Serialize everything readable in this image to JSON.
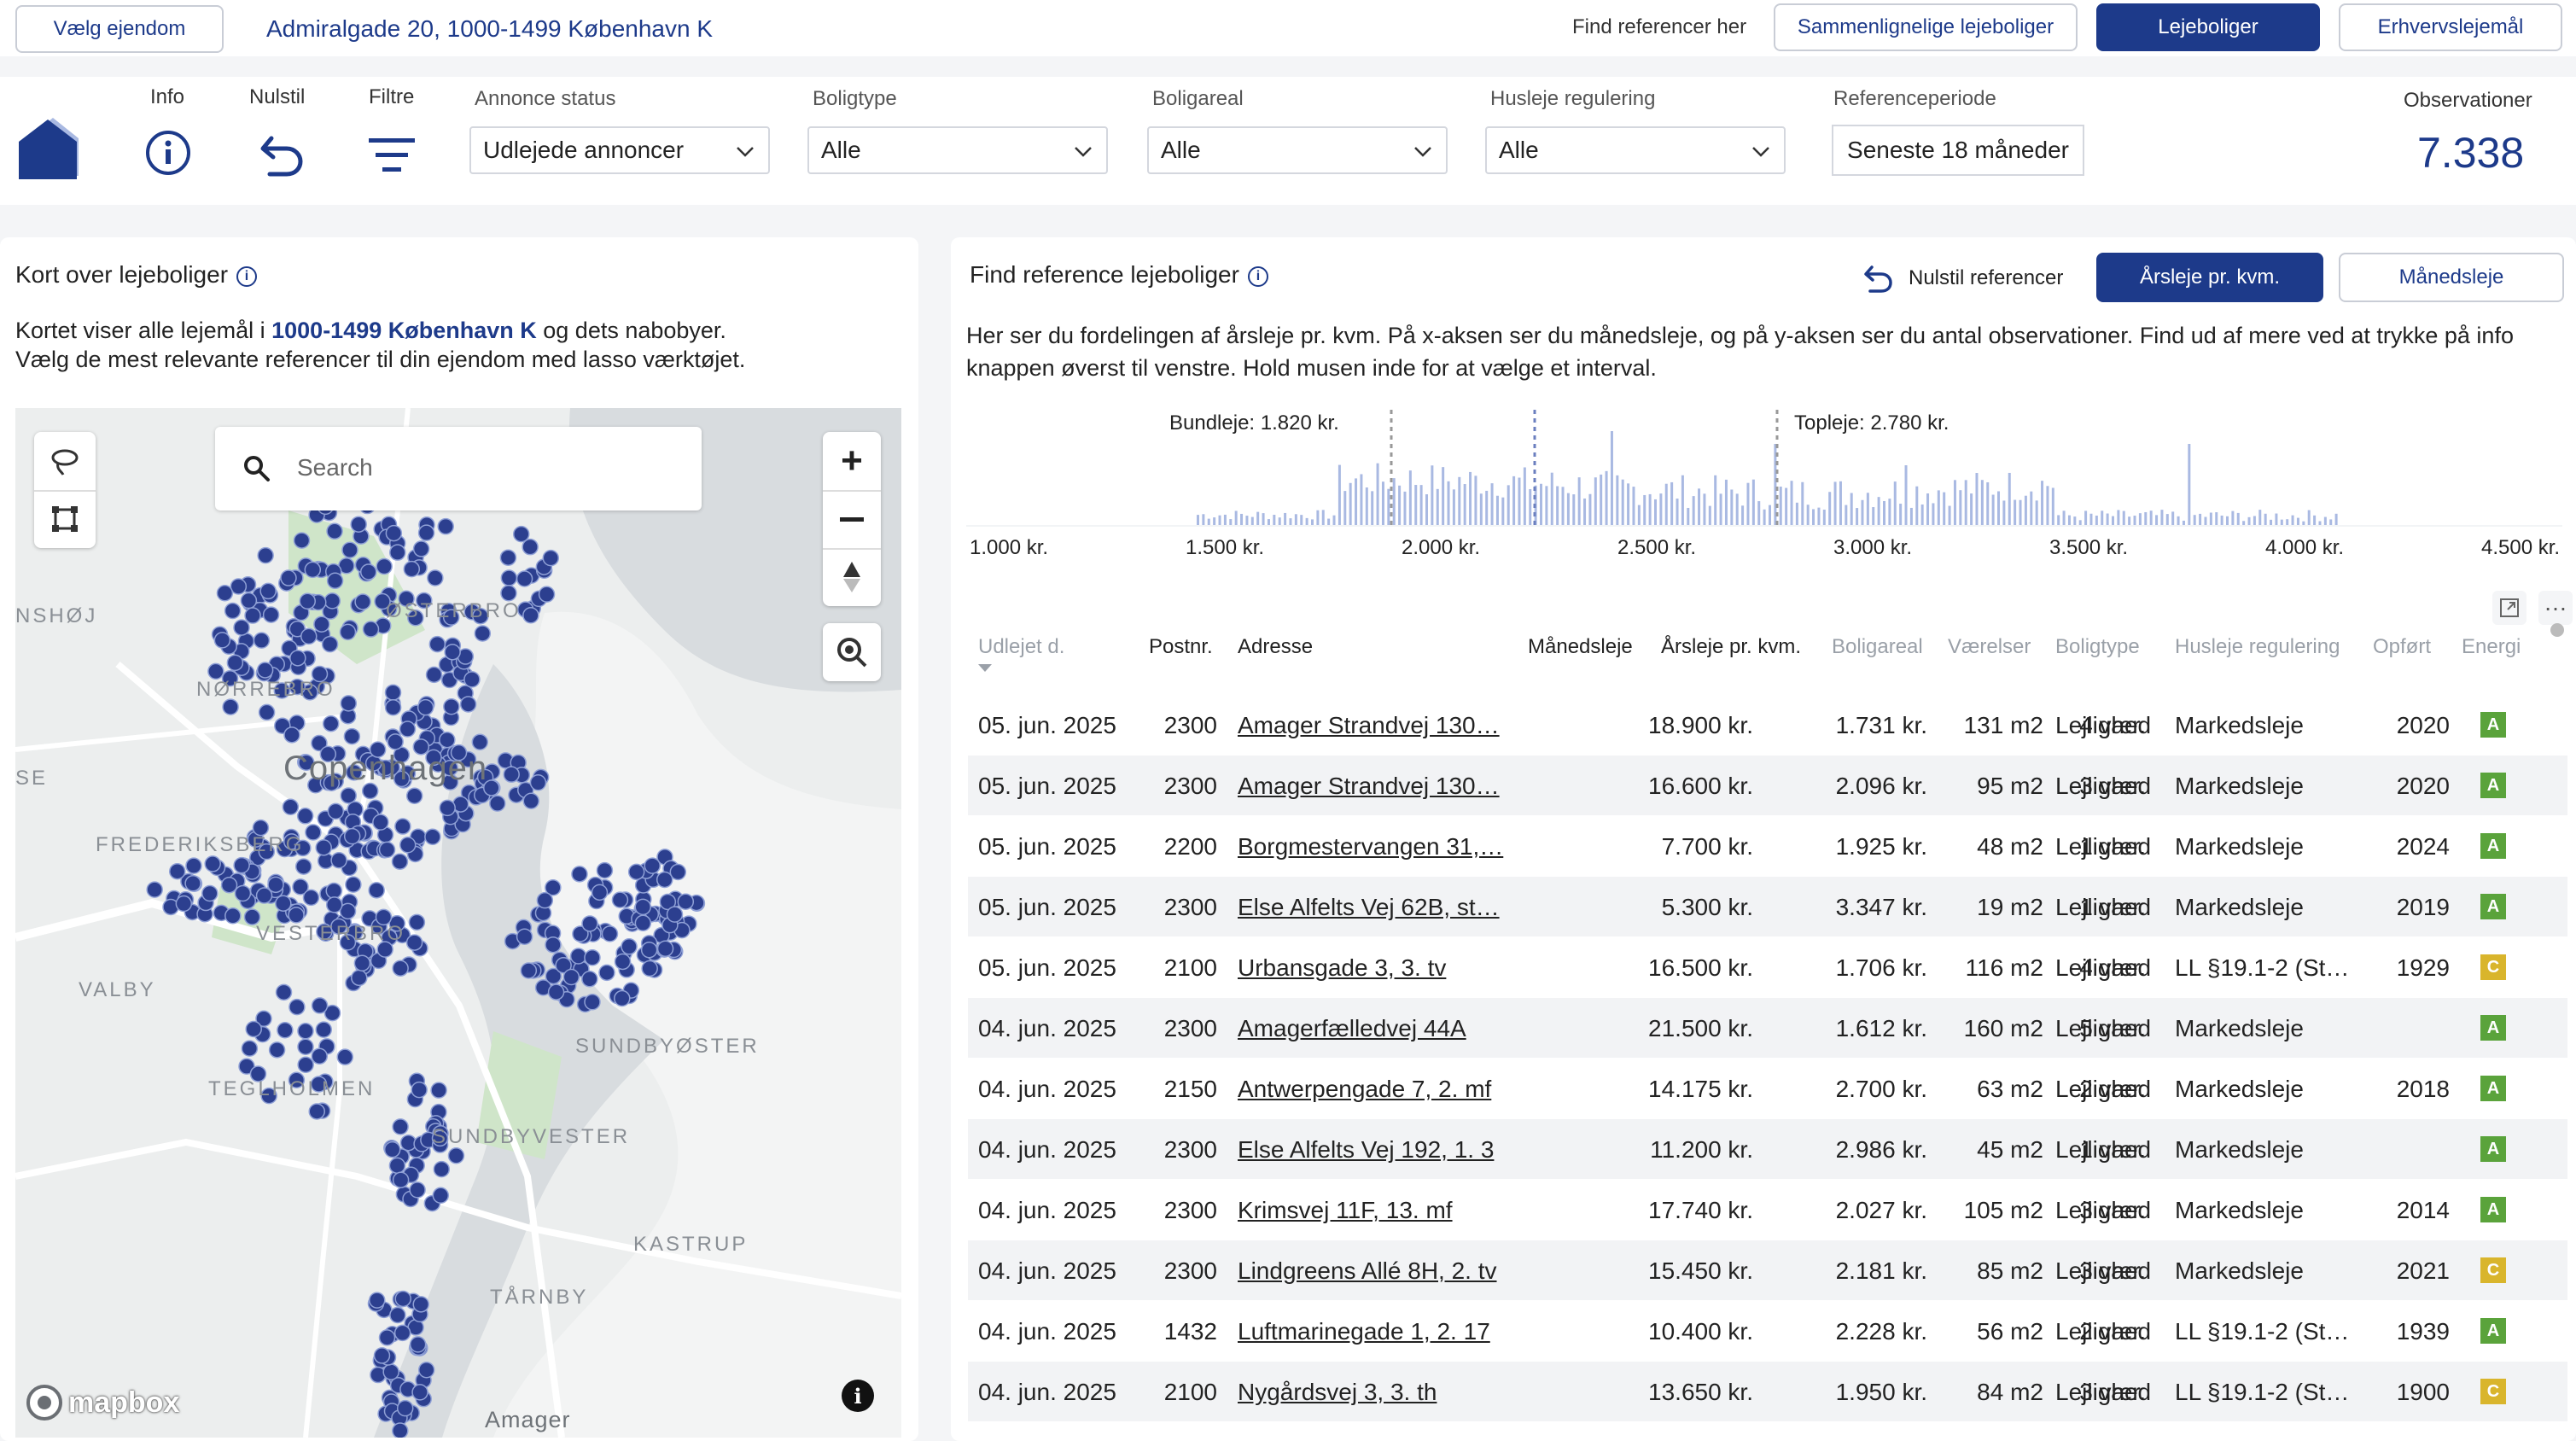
{
  "topbar": {
    "select_property": "Vælg ejendom",
    "address": "Admiralgade 20, 1000-1499 København K",
    "find_references_label": "Find referencer her",
    "btn_comparable": "Sammenlignelige lejeboliger",
    "btn_rental": "Lejeboliger",
    "btn_commercial": "Erhvervslejemål"
  },
  "tools": {
    "info": "Info",
    "reset": "Nulstil",
    "filters": "Filtre"
  },
  "filters": {
    "listing_status": {
      "label": "Annonce status",
      "value": "Udlejede annoncer"
    },
    "housing_type": {
      "label": "Boligtype",
      "value": "Alle"
    },
    "area": {
      "label": "Boligareal",
      "value": "Alle"
    },
    "rent_regulation": {
      "label": "Husleje regulering",
      "value": "Alle"
    },
    "reference_period": {
      "label": "Referenceperiode",
      "value": "Seneste 18 måneder"
    }
  },
  "observations": {
    "label": "Observationer",
    "value": "7.338"
  },
  "map_panel": {
    "title": "Kort over lejeboliger",
    "text_prefix": "Kortet viser alle lejemål i ",
    "text_area": "1000-1499 København K",
    "text_suffix": " og dets nabobyer.",
    "text_line2": "Vælg de mest relevante referencer til din ejendom med lasso værktøjet.",
    "search_placeholder": "Search",
    "labels": {
      "osterbro": "ØSTERBRO",
      "norrebro": "NØRREBRO",
      "copenhagen": "Copenhagen",
      "frederiksberg": "FREDERIKSBERG",
      "vesterbro": "VESTERBRO",
      "valby": "VALBY",
      "sundbyoster": "SUNDBYØSTER",
      "teglholmen": "TEGLHOLMEN",
      "sundbyvester": "SUNDBYVESTER",
      "kastrup": "KASTRUP",
      "tarnby": "TÅRNBY",
      "amager": "Amager",
      "nshoj": "NSHØJ",
      "se": "SE",
      "mapbox": "mapbox"
    }
  },
  "ref_panel": {
    "title": "Find reference lejeboliger",
    "reset_refs": "Nulstil referencer",
    "btn_yearly": "Årsleje pr. kvm.",
    "btn_monthly": "Månedsleje",
    "description": "Her ser du fordelingen af årsleje pr. kvm. På x-aksen ser du månedsleje, og på y-aksen ser du antal observationer. Find ud af mere ved at trykke på info knappen øverst til venstre. Hold musen inde for at vælge et interval.",
    "bundleje": "Bundleje: 1.820 kr.",
    "topleje": "Topleje: 2.780 kr.",
    "axis_ticks": [
      "1.000 kr.",
      "1.500 kr.",
      "2.000 kr.",
      "2.500 kr.",
      "3.000 kr.",
      "3.500 kr.",
      "4.000 kr.",
      "4.500 kr."
    ]
  },
  "table": {
    "headers": [
      "Udlejet d.",
      "Postnr.",
      "Adresse",
      "Månedsleje",
      "Årsleje pr. kvm.",
      "Boligareal",
      "Værelser",
      "Boligtype",
      "Husleje regulering",
      "Opført",
      "Energi"
    ],
    "rows": [
      [
        "05. jun. 2025",
        "2300",
        "Amager Strandvej 130…",
        "18.900 kr.",
        "1.731 kr.",
        "131 m2",
        "4 vær.",
        "Lejlighed",
        "Markedsleje",
        "2020",
        "A"
      ],
      [
        "05. jun. 2025",
        "2300",
        "Amager Strandvej 130…",
        "16.600 kr.",
        "2.096 kr.",
        "95 m2",
        "3 vær.",
        "Lejlighed",
        "Markedsleje",
        "2020",
        "A"
      ],
      [
        "05. jun. 2025",
        "2200",
        "Borgmestervangen 31,…",
        "7.700 kr.",
        "1.925 kr.",
        "48 m2",
        "1 vær.",
        "Lejlighed",
        "Markedsleje",
        "2024",
        "A"
      ],
      [
        "05. jun. 2025",
        "2300",
        "Else Alfelts Vej 62B, st…",
        "5.300 kr.",
        "3.347 kr.",
        "19 m2",
        "1 vær.",
        "Lejlighed",
        "Markedsleje",
        "2019",
        "A"
      ],
      [
        "05. jun. 2025",
        "2100",
        "Urbansgade 3, 3. tv",
        "16.500 kr.",
        "1.706 kr.",
        "116 m2",
        "4 vær.",
        "Lejlighed",
        "LL §19.1-2 (St…",
        "1929",
        "C"
      ],
      [
        "04. jun. 2025",
        "2300",
        "Amagerfælledvej 44A",
        "21.500 kr.",
        "1.612 kr.",
        "160 m2",
        "5 vær.",
        "Lejlighed",
        "Markedsleje",
        "",
        "A"
      ],
      [
        "04. jun. 2025",
        "2150",
        "Antwerpengade 7, 2. mf",
        "14.175 kr.",
        "2.700 kr.",
        "63 m2",
        "2 vær.",
        "Lejlighed",
        "Markedsleje",
        "2018",
        "A"
      ],
      [
        "04. jun. 2025",
        "2300",
        "Else Alfelts Vej 192, 1. 3",
        "11.200 kr.",
        "2.986 kr.",
        "45 m2",
        "1 vær.",
        "Lejlighed",
        "Markedsleje",
        "",
        "A"
      ],
      [
        "04. jun. 2025",
        "2300",
        "Krimsvej 11F, 13. mf",
        "17.740 kr.",
        "2.027 kr.",
        "105 m2",
        "3 vær.",
        "Lejlighed",
        "Markedsleje",
        "2014",
        "A"
      ],
      [
        "04. jun. 2025",
        "2300",
        "Lindgreens Allé 8H, 2. tv",
        "15.450 kr.",
        "2.181 kr.",
        "85 m2",
        "3 vær.",
        "Lejlighed",
        "Markedsleje",
        "2021",
        "C"
      ],
      [
        "04. jun. 2025",
        "1432",
        "Luftmarinegade 1, 2. 17",
        "10.400 kr.",
        "2.228 kr.",
        "56 m2",
        "2 vær.",
        "Lejlighed",
        "LL §19.1-2 (St…",
        "1939",
        "A"
      ],
      [
        "04. jun. 2025",
        "2100",
        "Nygårdsvej 3, 3. th",
        "13.650 kr.",
        "1.950 kr.",
        "84 m2",
        "3 vær.",
        "Lejlighed",
        "LL §19.1-2 (St…",
        "1900",
        "C"
      ]
    ]
  },
  "colors": {
    "primary": "#1d3a8a",
    "energy_A": "#5aa33b",
    "energy_C": "#d9b52c",
    "bar": "#a9b9e2"
  }
}
